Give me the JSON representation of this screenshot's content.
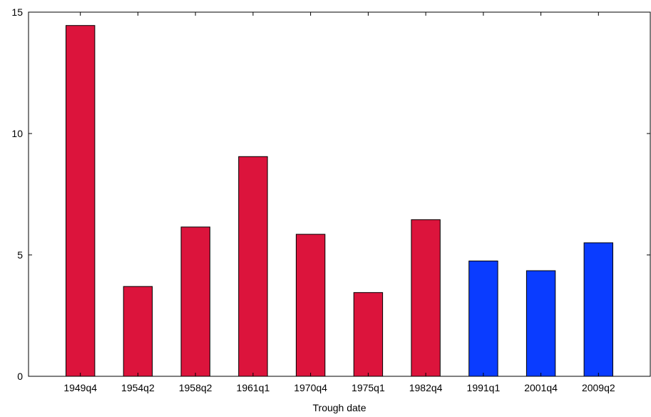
{
  "chart_data": {
    "type": "bar",
    "title": "",
    "xlabel": "Trough date",
    "ylabel": "",
    "categories": [
      "1949q4",
      "1954q2",
      "1958q2",
      "1961q1",
      "1970q4",
      "1975q1",
      "1982q4",
      "1991q1",
      "2001q4",
      "2009q2"
    ],
    "values": [
      14.45,
      3.7,
      6.15,
      9.05,
      5.85,
      3.45,
      6.45,
      4.75,
      4.35,
      5.5
    ],
    "bar_colors": [
      "#dc143c",
      "#dc143c",
      "#dc143c",
      "#dc143c",
      "#dc143c",
      "#dc143c",
      "#dc143c",
      "#0a3cff",
      "#0a3cff",
      "#0a3cff"
    ],
    "ylim": [
      0,
      15
    ],
    "yticks": [
      0,
      5,
      10,
      15
    ],
    "ytick_labels": [
      "0",
      "5",
      "10",
      "15"
    ],
    "grid": false,
    "legend": "none"
  }
}
